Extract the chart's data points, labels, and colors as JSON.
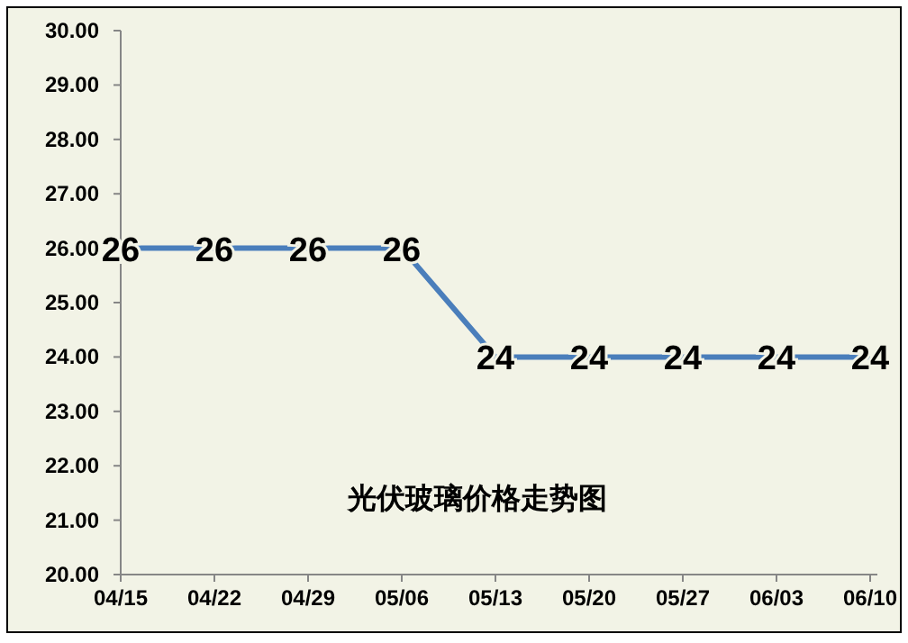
{
  "chart_data": {
    "type": "line",
    "title": "光伏玻璃价格走势图",
    "categories": [
      "04/15",
      "04/22",
      "04/29",
      "05/06",
      "05/13",
      "05/20",
      "05/27",
      "06/03",
      "06/10"
    ],
    "series": [
      {
        "color": "#4a7ebb",
        "values": [
          26,
          26,
          26,
          26,
          24,
          24,
          24,
          24,
          24
        ]
      }
    ],
    "ylim": [
      20,
      30
    ],
    "yticks": [
      {
        "value": 20,
        "label": "20.00"
      },
      {
        "value": 21,
        "label": "21.00"
      },
      {
        "value": 22,
        "label": "22.00"
      },
      {
        "value": 23,
        "label": "23.00"
      },
      {
        "value": 24,
        "label": "24.00"
      },
      {
        "value": 25,
        "label": "25.00"
      },
      {
        "value": 26,
        "label": "26.00"
      },
      {
        "value": 27,
        "label": "27.00"
      },
      {
        "value": 28,
        "label": "28.00"
      },
      {
        "value": 29,
        "label": "29.00"
      },
      {
        "value": 30,
        "label": "30.00"
      }
    ],
    "data_labels": true,
    "grid": false,
    "marker": "none",
    "line_style": "solid"
  }
}
